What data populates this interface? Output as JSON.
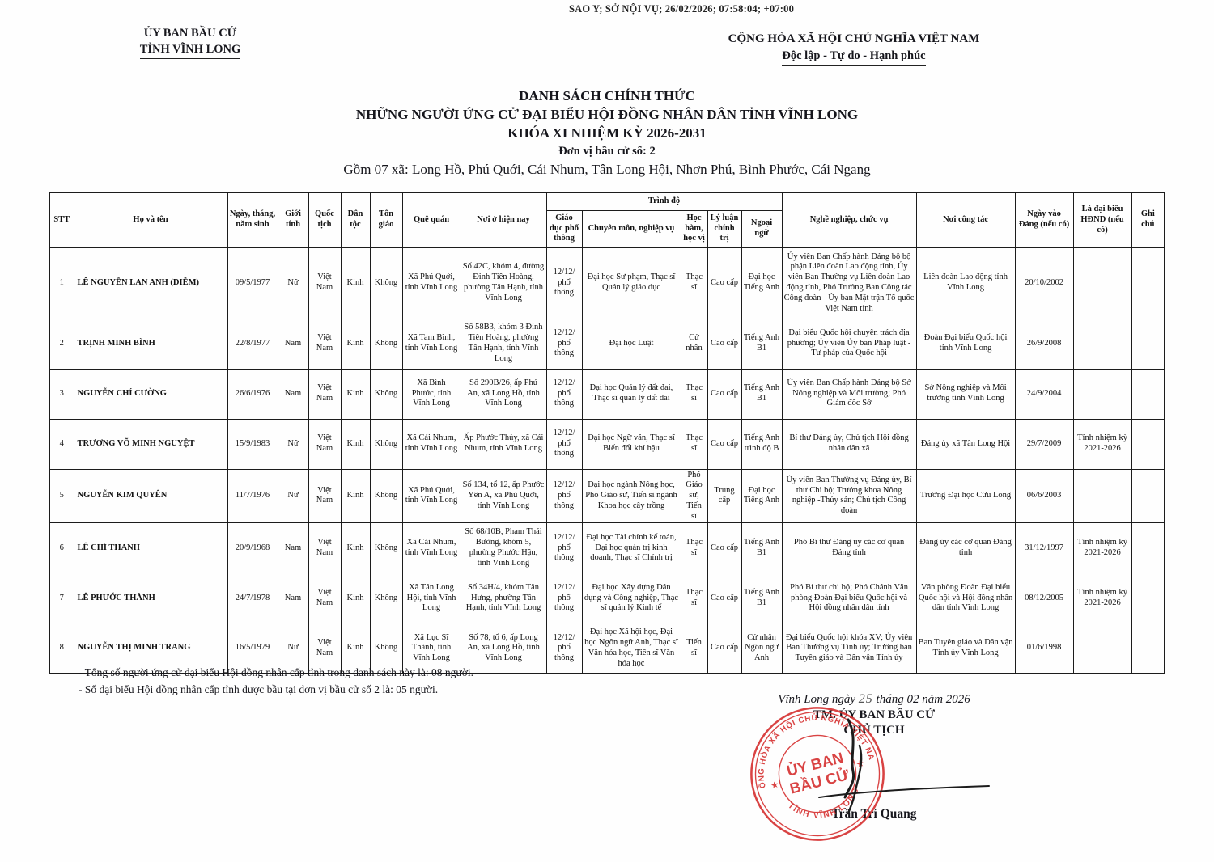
{
  "copy_stamp_line": "SAO Y; SỞ NỘI VỤ; 26/02/2026; 07:58:04; +07:00",
  "header": {
    "left_org_line1": "ỦY BAN BẦU CỬ",
    "left_org_line2": "TỈNH VĨNH LONG",
    "right_line1": "CỘNG HÒA XÃ HỘI CHỦ NGHĨA VIỆT NAM",
    "right_line2": "Độc lập - Tự do - Hạnh phúc"
  },
  "title": {
    "line1": "DANH SÁCH CHÍNH THỨC",
    "line2": "NHỮNG NGƯỜI ỨNG CỬ ĐẠI BIỂU HỘI ĐỒNG NHÂN DÂN TỈNH VĨNH LONG",
    "line3": "KHÓA XI NHIỆM KỲ 2026-2031",
    "line4": "Đơn vị bầu cử số: 2",
    "line5": "Gồm 07 xã: Long Hồ, Phú Quới, Cái Nhum, Tân Long Hội, Nhơn Phú, Bình Phước, Cái Ngang"
  },
  "table": {
    "headers": {
      "stt": "STT",
      "name": "Họ và tên",
      "dob": "Ngày, tháng, năm sinh",
      "gender": "Giới tính",
      "nationality": "Quốc tịch",
      "ethnicity": "Dân tộc",
      "religion": "Tôn giáo",
      "hometown": "Quê quán",
      "residence": "Nơi ở hiện nay",
      "trinh_do": "Trình độ",
      "education": "Giáo dục phổ thông",
      "qualification": "Chuyên môn, nghiệp vụ",
      "degree": "Học hàm, học vị",
      "politics": "Lý luận chính trị",
      "language": "Ngoại ngữ",
      "occupation": "Nghề nghiệp, chức vụ",
      "workplace": "Nơi công tác",
      "party_date": "Ngày vào Đảng (nếu có)",
      "council": "Là đại biểu HĐND (nếu có)",
      "note": "Ghi chú"
    },
    "rows": [
      {
        "stt": "1",
        "name": "LÊ NGUYỄN LAN ANH (DIỄM)",
        "dob": "09/5/1977",
        "gender": "Nữ",
        "nationality": "Việt Nam",
        "ethnicity": "Kinh",
        "religion": "Không",
        "hometown": "Xã Phú Quới, tỉnh Vĩnh Long",
        "residence": "Số 42C, khóm 4, đường Đinh Tiên Hoàng, phường Tân Hạnh, tỉnh Vĩnh Long",
        "education": "12/12/ phổ thông",
        "qualification": "Đại học Sư phạm, Thạc sĩ Quản lý giáo dục",
        "degree": "Thạc sĩ",
        "politics": "Cao cấp",
        "language": "Đại học Tiếng Anh",
        "occupation": "Ủy viên Ban Chấp hành Đảng bộ bộ phận Liên đoàn Lao động tỉnh, Ủy viên Ban Thường vụ Liên đoàn Lao động tỉnh, Phó Trưởng Ban Công tác Công đoàn - Ủy ban Mặt trận Tổ quốc Việt Nam tỉnh",
        "workplace": "Liên đoàn Lao động tỉnh Vĩnh Long",
        "party_date": "20/10/2002",
        "council": "",
        "note": ""
      },
      {
        "stt": "2",
        "name": "TRỊNH MINH BÌNH",
        "dob": "22/8/1977",
        "gender": "Nam",
        "nationality": "Việt Nam",
        "ethnicity": "Kinh",
        "religion": "Không",
        "hometown": "Xã Tam Bình, tỉnh Vĩnh Long",
        "residence": "Số 58B3, khóm 3 Đinh Tiên Hoàng, phường Tân Hạnh, tỉnh Vĩnh Long",
        "education": "12/12/ phổ thông",
        "qualification": "Đại học Luật",
        "degree": "Cử nhân",
        "politics": "Cao cấp",
        "language": "Tiếng Anh B1",
        "occupation": "Đại biểu Quốc hội chuyên trách địa phương; Ủy viên Ủy ban Pháp luật - Tư pháp của Quốc hội",
        "workplace": "Đoàn Đại biểu Quốc hội tỉnh Vĩnh Long",
        "party_date": "26/9/2008",
        "council": "",
        "note": ""
      },
      {
        "stt": "3",
        "name": "NGUYỄN CHÍ CƯỜNG",
        "dob": "26/6/1976",
        "gender": "Nam",
        "nationality": "Việt Nam",
        "ethnicity": "Kinh",
        "religion": "Không",
        "hometown": "Xã Bình Phước, tỉnh Vĩnh Long",
        "residence": "Số 290B/26, ấp Phú An, xã Long Hồ, tỉnh Vĩnh Long",
        "education": "12/12/ phổ thông",
        "qualification": "Đại học Quản lý đất đai, Thạc sĩ quản lý đất đai",
        "degree": "Thạc sĩ",
        "politics": "Cao cấp",
        "language": "Tiếng Anh B1",
        "occupation": "Ủy viên Ban Chấp hành Đảng bộ Sở Nông nghiệp và Môi trường; Phó Giám đốc Sở",
        "workplace": "Sở Nông nghiệp và Môi trường tỉnh Vĩnh Long",
        "party_date": "24/9/2004",
        "council": "",
        "note": ""
      },
      {
        "stt": "4",
        "name": "TRƯƠNG VÕ MINH NGUYỆT",
        "dob": "15/9/1983",
        "gender": "Nữ",
        "nationality": "Việt Nam",
        "ethnicity": "Kinh",
        "religion": "Không",
        "hometown": "Xã Cái Nhum, tỉnh Vĩnh Long",
        "residence": "Ấp Phước Thủy, xã Cái Nhum, tỉnh Vĩnh Long",
        "education": "12/12/ phổ thông",
        "qualification": "Đại học Ngữ văn, Thạc sĩ Biến đổi khí hậu",
        "degree": "Thạc sĩ",
        "politics": "Cao cấp",
        "language": "Tiếng Anh trình độ B",
        "occupation": "Bí thư Đảng ủy, Chủ tịch Hội đồng nhân dân xã",
        "workplace": "Đảng ủy xã Tân Long Hội",
        "party_date": "29/7/2009",
        "council": "Tỉnh nhiệm kỳ 2021-2026",
        "note": ""
      },
      {
        "stt": "5",
        "name": "NGUYỄN KIM QUYÊN",
        "dob": "11/7/1976",
        "gender": "Nữ",
        "nationality": "Việt Nam",
        "ethnicity": "Kinh",
        "religion": "Không",
        "hometown": "Xã Phú Quới, tỉnh Vĩnh Long",
        "residence": "Số 134, tổ 12, ấp Phước Yên A, xã Phú Quới, tỉnh Vĩnh Long",
        "education": "12/12/ phổ thông",
        "qualification": "Đại học ngành Nông học, Phó Giáo sư, Tiến sĩ ngành Khoa học cây trồng",
        "degree": "Phó Giáo sư, Tiến sĩ",
        "politics": "Trung cấp",
        "language": "Đại học Tiếng Anh",
        "occupation": "Ủy viên Ban Thường vụ Đảng ủy, Bí thư Chi bộ; Trưởng khoa Nông nghiệp -Thủy sản; Chủ tịch Công đoàn",
        "workplace": "Trường Đại học Cửu Long",
        "party_date": "06/6/2003",
        "council": "",
        "note": ""
      },
      {
        "stt": "6",
        "name": "LÊ CHÍ THANH",
        "dob": "20/9/1968",
        "gender": "Nam",
        "nationality": "Việt Nam",
        "ethnicity": "Kinh",
        "religion": "Không",
        "hometown": "Xã Cái Nhum, tỉnh Vĩnh Long",
        "residence": "Số 68/10B, Phạm Thái Bường, khóm 5, phường Phước Hậu, tỉnh Vĩnh Long",
        "education": "12/12/ phổ thông",
        "qualification": "Đại học Tài chính kế toán, Đại học quản trị kinh doanh, Thạc sĩ Chính trị",
        "degree": "Thạc sĩ",
        "politics": "Cao cấp",
        "language": "Tiếng Anh B1",
        "occupation": "Phó Bí thư Đảng ủy các cơ quan Đảng tỉnh",
        "workplace": "Đảng ủy các cơ quan Đảng tỉnh",
        "party_date": "31/12/1997",
        "council": "Tỉnh nhiệm kỳ 2021-2026",
        "note": ""
      },
      {
        "stt": "7",
        "name": "LÊ PHƯỚC THÀNH",
        "dob": "24/7/1978",
        "gender": "Nam",
        "nationality": "Việt Nam",
        "ethnicity": "Kinh",
        "religion": "Không",
        "hometown": "Xã Tân Long Hội, tỉnh Vĩnh Long",
        "residence": "Số 34H/4, khóm Tân Hưng, phường Tân Hạnh, tỉnh Vĩnh Long",
        "education": "12/12/ phổ thông",
        "qualification": "Đại học Xây dựng Dân dụng và Công nghiệp, Thạc sĩ quản lý Kinh tế",
        "degree": "Thạc sĩ",
        "politics": "Cao cấp",
        "language": "Tiếng Anh B1",
        "occupation": "Phó Bí thư chi bộ; Phó Chánh Văn phòng Đoàn Đại biểu Quốc hội và Hội đồng nhân dân tỉnh",
        "workplace": "Văn phòng Đoàn Đại biểu Quốc hội và Hội đồng nhân dân tỉnh Vĩnh Long",
        "party_date": "08/12/2005",
        "council": "Tỉnh nhiệm kỳ 2021-2026",
        "note": ""
      },
      {
        "stt": "8",
        "name": "NGUYỄN THỊ MINH TRANG",
        "dob": "16/5/1979",
        "gender": "Nữ",
        "nationality": "Việt Nam",
        "ethnicity": "Kinh",
        "religion": "Không",
        "hometown": "Xã Lục Sĩ Thành, tỉnh Vĩnh Long",
        "residence": "Số 78, tổ 6, ấp Long An, xã Long Hồ, tỉnh Vĩnh Long",
        "education": "12/12/ phổ thông",
        "qualification": "Đại học Xã hội học, Đại học Ngôn ngữ Anh, Thạc sĩ Văn hóa học, Tiến sĩ Văn hóa học",
        "degree": "Tiến sĩ",
        "politics": "Cao cấp",
        "language": "Cử nhân Ngôn ngữ Anh",
        "occupation": "Đại biểu Quốc hội khóa XV; Ủy viên Ban Thường vụ Tỉnh ủy; Trưởng ban Tuyên giáo và Dân vận Tỉnh ủy",
        "workplace": "Ban Tuyên giáo và Dân vận Tỉnh ủy Vĩnh Long",
        "party_date": "01/6/1998",
        "council": "",
        "note": ""
      }
    ]
  },
  "footer": {
    "note1": "- Tổng số người ứng cử đại biểu Hội đồng nhân cấp tỉnh trong danh sách này là: 08 người.",
    "note2": "- Số đại biểu Hội đồng nhân cấp tỉnh được bầu tại đơn vị bầu cử số 2 là: 05 người."
  },
  "signature": {
    "date_prefix": "Vĩnh Long ngày",
    "day": "25",
    "date_suffix": "tháng  02  năm 2026",
    "org": "TM. ỦY BAN BẦU CỬ",
    "role": "CHỦ TỊCH",
    "name": "Trần Trí Quang",
    "stamp": {
      "arc_top": "CỘNG HÒA XÃ HỘI CHỦ NGHĨA VIỆT NAM",
      "arc_bottom": "TỈNH VĨNH LONG",
      "center_line1": "ỦY BAN",
      "center_line2": "BẦU CỬ",
      "star": "★",
      "color": "#d63434"
    }
  }
}
